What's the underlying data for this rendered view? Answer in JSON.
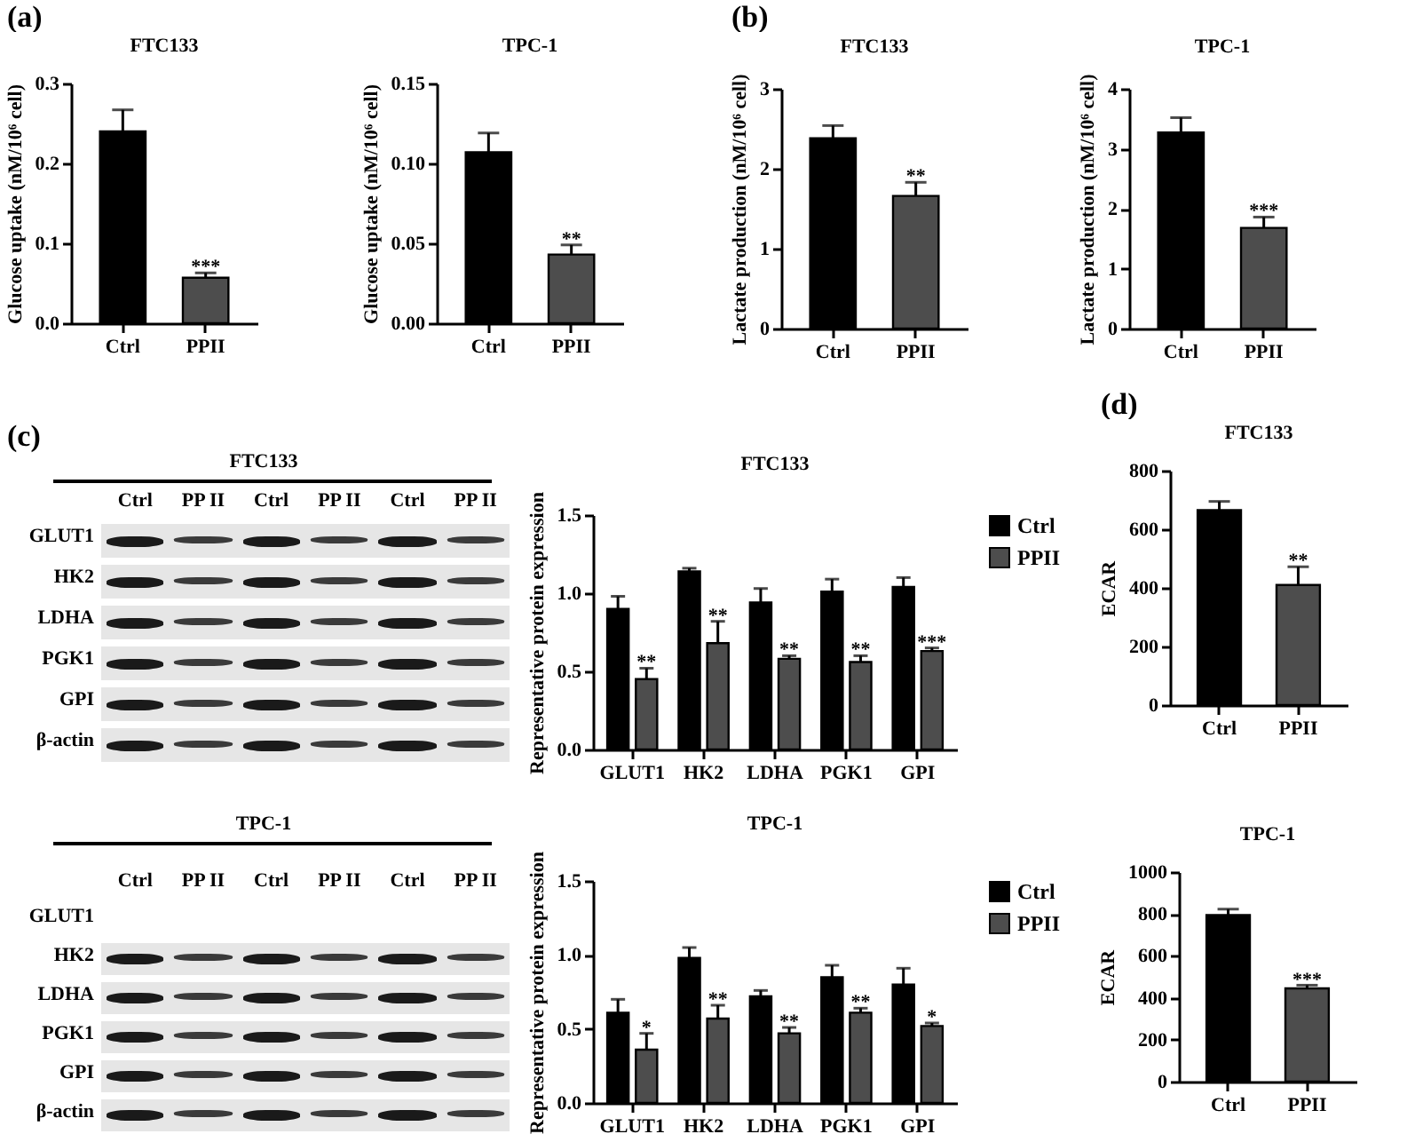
{
  "chart_data": [
    {
      "type": "bar",
      "title": "FTC133",
      "ylabel": "Glucose uptake (nM/10⁶ cell)",
      "categories": [
        "Ctrl",
        "PPII"
      ],
      "values": [
        0.24,
        0.057
      ],
      "errors": [
        0.027,
        0.006
      ],
      "colors": [
        "#000000",
        "#4d4d4d"
      ],
      "ylim": [
        0,
        0.3
      ],
      "yticks": [
        {
          "value": 0,
          "label": "0.0"
        },
        0.1,
        0.2,
        0.3
      ],
      "annotations": [
        "(a)",
        {
          "text": "***",
          "x": "PPII",
          "y": 0.063
        }
      ]
    },
    {
      "type": "bar",
      "title": "TPC-1",
      "ylabel": "Glucose uptake (nM/10⁶ cell)",
      "categories": [
        "Ctrl",
        "PPII"
      ],
      "values": [
        0.107,
        0.043
      ],
      "errors": [
        0.012,
        0.006
      ],
      "colors": [
        "#000000",
        "#4d4d4d"
      ],
      "ylim": [
        0,
        0.15
      ],
      "yticks": [
        {
          "value": 0,
          "label": "0.00"
        },
        0.05,
        {
          "value": 0.1,
          "label": "0.10"
        },
        0.15
      ],
      "annotations": [
        {
          "text": "**",
          "x": "PPII",
          "y": 0.049
        }
      ]
    },
    {
      "type": "bar",
      "title": "FTC133",
      "ylabel": "Lactate production (nM/10⁶ cell)",
      "categories": [
        "Ctrl",
        "PPII"
      ],
      "values": [
        2.38,
        1.66
      ],
      "errors": [
        0.16,
        0.17
      ],
      "colors": [
        "#000000",
        "#4d4d4d"
      ],
      "ylim": [
        0,
        3
      ],
      "yticks": [
        0,
        1,
        2,
        3
      ],
      "annotations": [
        "(b)",
        {
          "text": "**",
          "x": "PPII",
          "y": 1.83
        }
      ]
    },
    {
      "type": "bar",
      "title": "TPC-1",
      "ylabel": "Lactate production (nM/10⁶ cell)",
      "categories": [
        "Ctrl",
        "PPII"
      ],
      "values": [
        3.27,
        1.68
      ],
      "errors": [
        0.25,
        0.18
      ],
      "colors": [
        "#000000",
        "#4d4d4d"
      ],
      "ylim": [
        0,
        4
      ],
      "yticks": [
        0,
        1,
        2,
        3,
        4
      ],
      "annotations": [
        {
          "text": "***",
          "x": "PPII",
          "y": 1.86
        }
      ]
    },
    {
      "type": "other",
      "title": "FTC133",
      "categories": [
        "Ctrl",
        "PP II",
        "Ctrl",
        "PP II",
        "Ctrl",
        "PP II"
      ],
      "y_categories": [
        "GLUT1",
        "HK2",
        "LDHA",
        "PGK1",
        "GPI",
        "β-actin"
      ],
      "annotations": [
        "(c)"
      ]
    },
    {
      "type": "bar",
      "title": "FTC133",
      "ylabel": "Representative protein expression",
      "categories": [
        "GLUT1",
        "HK2",
        "LDHA",
        "PGK1",
        "GPI"
      ],
      "legend": "top right",
      "ylim": [
        0,
        1.5
      ],
      "yticks": [
        {
          "value": 0,
          "label": "0.0"
        },
        0.5,
        {
          "value": 1,
          "label": "1.0"
        },
        1.5
      ],
      "series": [
        {
          "name": "Ctrl",
          "color": "#000000",
          "values": [
            0.9,
            1.14,
            0.94,
            1.01,
            1.04
          ],
          "errors": [
            0.08,
            0.02,
            0.09,
            0.08,
            0.06
          ]
        },
        {
          "name": "PPII",
          "color": "#4d4d4d",
          "values": [
            0.45,
            0.68,
            0.58,
            0.56,
            0.63
          ],
          "errors": [
            0.07,
            0.14,
            0.02,
            0.04,
            0.02
          ]
        }
      ],
      "annotations": [
        {
          "text": "**",
          "x": "GLUT1",
          "y": 0.52
        },
        {
          "text": "**",
          "x": "HK2",
          "y": 0.82
        },
        {
          "text": "**",
          "x": "LDHA",
          "y": 0.6
        },
        {
          "text": "**",
          "x": "PGK1",
          "y": 0.6
        },
        {
          "text": "***",
          "x": "GPI",
          "y": 0.65
        }
      ]
    },
    {
      "type": "other",
      "title": "TPC-1",
      "categories": [
        "Ctrl",
        "PP II",
        "Ctrl",
        "PP II",
        "Ctrl",
        "PP II"
      ],
      "y_categories": [
        "GLUT1",
        "HK2",
        "LDHA",
        "PGK1",
        "GPI",
        "β-actin"
      ]
    },
    {
      "type": "bar",
      "title": "TPC-1",
      "ylabel": "Representative protein expression",
      "categories": [
        "GLUT1",
        "HK2",
        "LDHA",
        "PGK1",
        "GPI"
      ],
      "legend": "top right",
      "ylim": [
        0,
        1.5
      ],
      "yticks": [
        {
          "value": 0,
          "label": "0.0"
        },
        0.5,
        {
          "value": 1,
          "label": "1.0"
        },
        1.5
      ],
      "series": [
        {
          "name": "Ctrl",
          "color": "#000000",
          "values": [
            0.61,
            0.98,
            0.72,
            0.85,
            0.8
          ],
          "errors": [
            0.09,
            0.07,
            0.04,
            0.08,
            0.11
          ]
        },
        {
          "name": "PPII",
          "color": "#4d4d4d",
          "values": [
            0.36,
            0.57,
            0.47,
            0.61,
            0.52
          ],
          "errors": [
            0.11,
            0.09,
            0.04,
            0.03,
            0.02
          ]
        }
      ],
      "annotations": [
        {
          "text": "*",
          "x": "GLUT1",
          "y": 0.47
        },
        {
          "text": "**",
          "x": "HK2",
          "y": 0.66
        },
        {
          "text": "**",
          "x": "LDHA",
          "y": 0.51
        },
        {
          "text": "**",
          "x": "PGK1",
          "y": 0.64
        },
        {
          "text": "*",
          "x": "GPI",
          "y": 0.54
        }
      ]
    },
    {
      "type": "bar",
      "title": "FTC133",
      "ylabel": "ECAR",
      "categories": [
        "Ctrl",
        "PPII"
      ],
      "values": [
        665,
        410
      ],
      "errors": [
        30,
        62
      ],
      "colors": [
        "#000000",
        "#4d4d4d"
      ],
      "ylim": [
        0,
        800
      ],
      "yticks": [
        0,
        200,
        400,
        600,
        800
      ],
      "annotations": [
        "(d)",
        {
          "text": "**",
          "x": "PPII",
          "y": 472
        }
      ]
    },
    {
      "type": "bar",
      "title": "TPC-1",
      "ylabel": "ECAR",
      "categories": [
        "Ctrl",
        "PPII"
      ],
      "values": [
        795,
        445
      ],
      "errors": [
        28,
        15
      ],
      "colors": [
        "#000000",
        "#4d4d4d"
      ],
      "ylim": [
        0,
        1000
      ],
      "yticks": [
        0,
        200,
        400,
        600,
        800,
        1000
      ],
      "annotations": [
        {
          "text": "***",
          "x": "PPII",
          "y": 458
        }
      ]
    }
  ]
}
